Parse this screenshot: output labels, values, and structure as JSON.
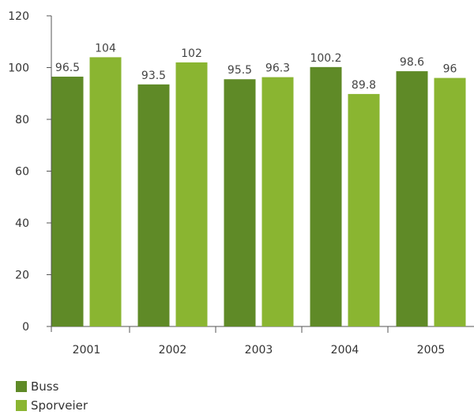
{
  "chart_data": {
    "type": "bar",
    "categories": [
      "2001",
      "2002",
      "2003",
      "2004",
      "2005"
    ],
    "series": [
      {
        "name": "Buss",
        "values": [
          96.5,
          93.5,
          95.5,
          100.2,
          98.6
        ],
        "color": "#5f8a27"
      },
      {
        "name": "Sporveier",
        "values": [
          104,
          102,
          96.3,
          89.8,
          96
        ],
        "color": "#8ab531"
      }
    ],
    "value_labels": [
      [
        "96.5",
        "93.5",
        "95.5",
        "100.2",
        "98.6"
      ],
      [
        "104",
        "102",
        "96.3",
        "89.8",
        "96"
      ]
    ],
    "ylim": [
      0,
      120
    ],
    "yticks": [
      "0",
      "20",
      "40",
      "60",
      "80",
      "100",
      "120"
    ],
    "legend_position": "bottom-left",
    "grid": false
  }
}
